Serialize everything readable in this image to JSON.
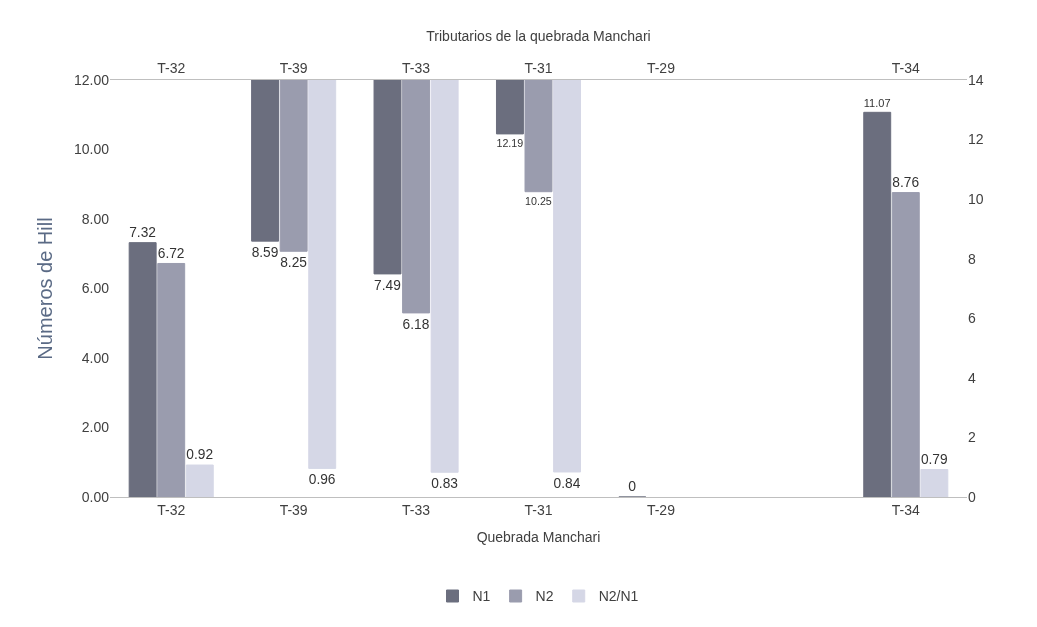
{
  "chart_data": {
    "type": "bar",
    "categories": [
      "T-32",
      "T-39",
      "T-33",
      "T-31",
      "T-29",
      null,
      "T-34"
    ],
    "xlabel": "Quebrada Manchari",
    "x2label": "Tributarios de la quebrada Manchari",
    "ylabel": "Números de Hill",
    "series": [
      {
        "name": "N1",
        "color": "#6b6e7e",
        "values": [
          7.32,
          null,
          null,
          null,
          0,
          null,
          11.07
        ]
      },
      {
        "name": "N2",
        "color": "#9a9cae",
        "values": [
          6.72,
          null,
          null,
          null,
          null,
          null,
          8.76
        ]
      },
      {
        "name": "N2/N1",
        "color": "#d5d7e6",
        "values": [
          0.92,
          null,
          null,
          null,
          null,
          null,
          0.79
        ]
      },
      {
        "color": "#6b6e7e",
        "axis": "y2",
        "base": [
          null,
          14,
          14,
          14,
          null,
          null,
          null
        ],
        "values": [
          null,
          -5.41,
          -6.51,
          -1.81,
          null,
          null,
          null
        ],
        "value_labels": [
          null,
          "8.59",
          "7.49",
          "12.19",
          null,
          null,
          null
        ]
      },
      {
        "color": "#9a9cae",
        "axis": "y2",
        "base": [
          null,
          14,
          14,
          14,
          null,
          null,
          null
        ],
        "values": [
          null,
          -5.75,
          -7.82,
          -3.75,
          null,
          null,
          null
        ],
        "value_labels": [
          null,
          "8.25",
          "6.18",
          "10.25",
          null,
          null,
          null
        ]
      },
      {
        "color": "#d5d7e6",
        "axis": "y2",
        "base": [
          null,
          14,
          14,
          14,
          null,
          null,
          null
        ],
        "values": [
          null,
          -13.04,
          -13.17,
          -13.16,
          null,
          null,
          null
        ],
        "value_labels": [
          null,
          "0.96",
          "0.83",
          "0.84",
          null,
          null,
          null
        ]
      }
    ],
    "ylim": [
      0,
      12
    ],
    "yticks": [
      {
        "value": 0,
        "label": "0.00"
      },
      {
        "value": 2,
        "label": "2.00"
      },
      {
        "value": 4,
        "label": "4.00"
      },
      {
        "value": 6,
        "label": "6.00"
      },
      {
        "value": 8,
        "label": "8.00"
      },
      {
        "value": 10,
        "label": "10.00"
      },
      {
        "value": 12,
        "label": "12.00"
      }
    ],
    "y2lim": [
      0,
      14
    ],
    "y2ticks": [
      0,
      2,
      4,
      6,
      8,
      10,
      12,
      14
    ],
    "data_labels": true,
    "legend": "bottom",
    "grid": false
  }
}
